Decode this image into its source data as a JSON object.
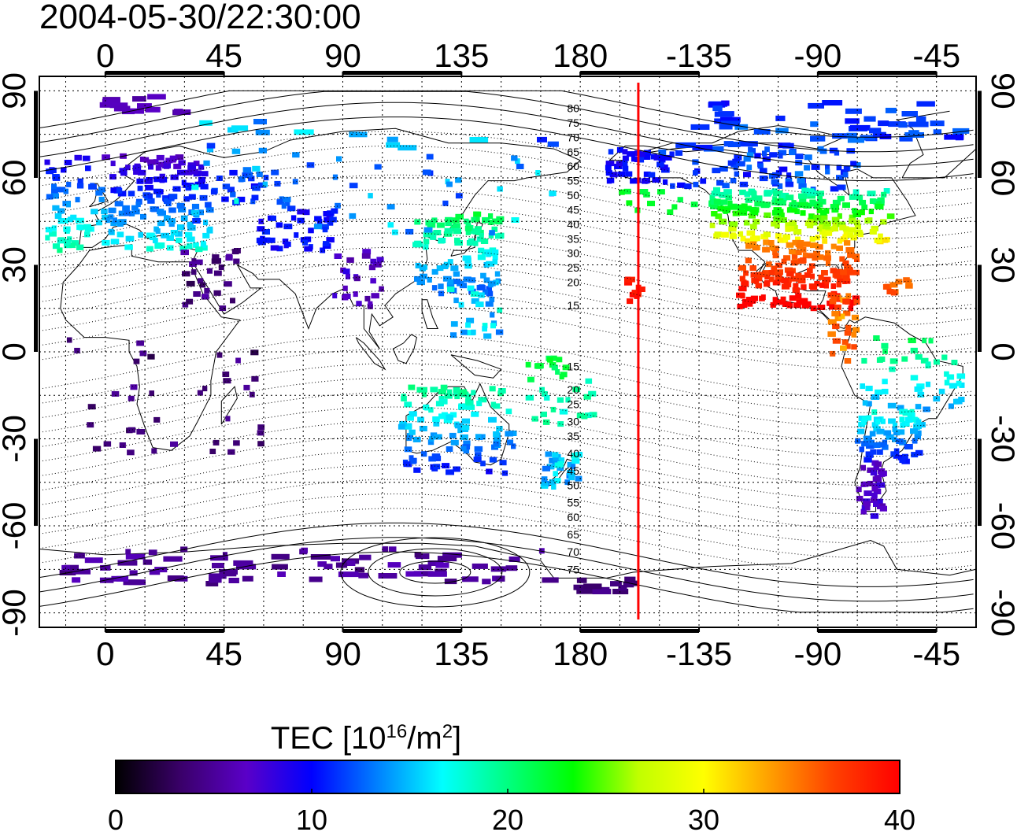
{
  "title": "2004-05-30/22:30:00",
  "map": {
    "lon_ticks": [
      "0",
      "45",
      "90",
      "135",
      "180",
      "-135",
      "-90",
      "-45"
    ],
    "lon_values": [
      0,
      45,
      90,
      135,
      180,
      225,
      270,
      315
    ],
    "lat_ticks": [
      "90",
      "60",
      "30",
      "0",
      "-30",
      "-60",
      "-90"
    ],
    "lat_values": [
      90,
      60,
      30,
      0,
      -30,
      -60,
      -90
    ],
    "lon_range": [
      -25,
      330
    ],
    "lat_range": [
      -95,
      95
    ],
    "grid": true,
    "terminator_longitude": 202,
    "terminator_color": "#ff0000",
    "contour_labels": [
      "80",
      "75",
      "70",
      "65",
      "60",
      "55",
      "50",
      "45",
      "40",
      "35",
      "30",
      "25",
      "20",
      "15",
      "15",
      "20",
      "25",
      "30",
      "35",
      "40",
      "45",
      "50",
      "55",
      "60",
      "65",
      "70",
      "75"
    ],
    "contour_label_lats": [
      84,
      79,
      74,
      69,
      64,
      59,
      54,
      49,
      44,
      39,
      34,
      29,
      24,
      16,
      -5,
      -13,
      -18,
      -24,
      -29,
      -35,
      -41,
      -46,
      -52,
      -57,
      -63,
      -69,
      -75
    ]
  },
  "colorbar": {
    "title_main": "TEC  [10",
    "title_exp": "16",
    "title_unit": "/m",
    "title_unit_exp": "2",
    "title_close": "]",
    "ticks": [
      "0",
      "10",
      "20",
      "30",
      "40"
    ],
    "tick_values": [
      0,
      10,
      20,
      30,
      40
    ],
    "range": [
      0,
      40
    ],
    "colors": [
      "#000000",
      "#3a006a",
      "#5a00c8",
      "#0000ff",
      "#0080ff",
      "#00ffff",
      "#00ff80",
      "#00ff00",
      "#c0ff00",
      "#ffff00",
      "#ffa000",
      "#ff4000",
      "#ff0000"
    ]
  }
}
